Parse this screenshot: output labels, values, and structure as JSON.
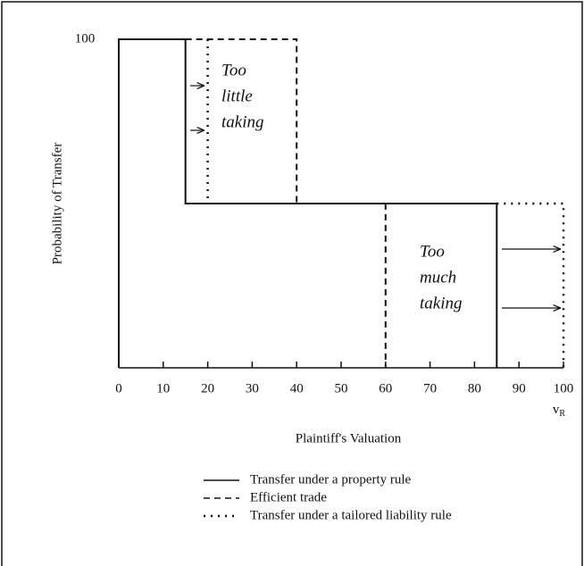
{
  "chart_data": {
    "type": "line",
    "y_label": "Probability of Transfer",
    "x_label": "Plaintiff's Valuation",
    "x_axis_symbol": "v",
    "x_axis_symbol_subscript": "R",
    "xlim": [
      0,
      100
    ],
    "xticks": [
      0,
      10,
      20,
      30,
      40,
      50,
      60,
      70,
      80,
      90,
      100
    ],
    "ylim": [
      0,
      100
    ],
    "yticks": [
      100
    ],
    "series": [
      {
        "name": "Transfer under a property rule",
        "style": "solid",
        "color": "#111111",
        "x": [
          0,
          0,
          15,
          15,
          85,
          85
        ],
        "values": [
          0,
          100,
          100,
          50,
          50,
          0
        ]
      },
      {
        "name": "Efficient trade",
        "style": "dashed",
        "color": "#111111",
        "x": [
          15,
          40,
          40,
          60,
          60
        ],
        "values": [
          100,
          100,
          50,
          50,
          0
        ]
      },
      {
        "name": "Transfer under a tailored liability rule",
        "style": "dotted",
        "color": "#111111",
        "x": [
          20,
          20,
          null,
          85,
          100,
          100
        ],
        "values": [
          100,
          50,
          null,
          50,
          50,
          0
        ]
      }
    ],
    "annotations": [
      {
        "lines": [
          "Too",
          "little",
          "taking"
        ]
      },
      {
        "lines": [
          "Too",
          "much",
          "taking"
        ]
      }
    ]
  }
}
